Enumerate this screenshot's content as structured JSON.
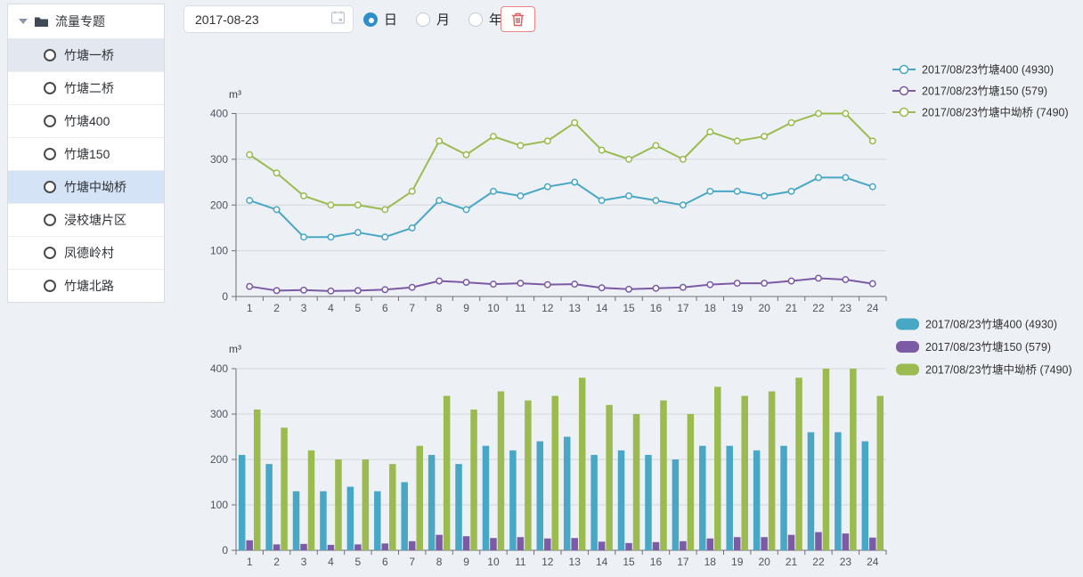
{
  "colors": {
    "page_background": "#EDF0F4",
    "sidebar_hover_bg": "#E3E7EF",
    "sidebar_selected_bg": "#D5E3F7",
    "radio_selected_blue": "#2D8EC9",
    "delete_red": "#E25A5A",
    "series_teal": "#49A7C6",
    "series_purple": "#7C5AA5",
    "series_green": "#9BBB50"
  },
  "sidebar": {
    "header": {
      "label": "流量专题"
    },
    "items": [
      {
        "label": "竹塘一桥",
        "state": "hover"
      },
      {
        "label": "竹塘二桥",
        "state": "normal"
      },
      {
        "label": "竹塘400",
        "state": "normal"
      },
      {
        "label": "竹塘150",
        "state": "normal"
      },
      {
        "label": "竹塘中坳桥",
        "state": "selected"
      },
      {
        "label": "浸校塘片区",
        "state": "normal"
      },
      {
        "label": "凤德岭村",
        "state": "normal"
      },
      {
        "label": "竹塘北路",
        "state": "normal"
      }
    ]
  },
  "toolbar": {
    "date_value": "2017-08-23",
    "period_options": [
      {
        "label": "日",
        "selected": true
      },
      {
        "label": "月",
        "selected": false
      },
      {
        "label": "年",
        "selected": false
      }
    ]
  },
  "chart_data": [
    {
      "type": "line",
      "title": "",
      "ylabel": "m³",
      "xlabel": "",
      "ylim": [
        0,
        400
      ],
      "y_ticks": [
        0,
        100,
        200,
        300,
        400
      ],
      "grid": true,
      "legend_position": "top-right",
      "x": [
        1,
        2,
        3,
        4,
        5,
        6,
        7,
        8,
        9,
        10,
        11,
        12,
        13,
        14,
        15,
        16,
        17,
        18,
        19,
        20,
        21,
        22,
        23,
        24
      ],
      "series": [
        {
          "name": "2017/08/23竹塘400 (4930)",
          "total": 4930,
          "color": "#49A7C6",
          "values": [
            210,
            190,
            130,
            130,
            140,
            130,
            150,
            210,
            190,
            230,
            220,
            240,
            250,
            210,
            220,
            210,
            200,
            230,
            230,
            220,
            230,
            260,
            260,
            240
          ]
        },
        {
          "name": "2017/08/23竹塘150 (579)",
          "total": 579,
          "color": "#7C5AA5",
          "values": [
            22,
            13,
            14,
            12,
            13,
            15,
            20,
            34,
            31,
            27,
            29,
            26,
            27,
            19,
            16,
            18,
            20,
            26,
            29,
            29,
            34,
            40,
            37,
            28
          ]
        },
        {
          "name": "2017/08/23竹塘中坳桥 (7490)",
          "total": 7490,
          "color": "#9BBB50",
          "values": [
            310,
            270,
            220,
            200,
            200,
            190,
            230,
            340,
            310,
            350,
            330,
            340,
            380,
            320,
            300,
            330,
            300,
            360,
            340,
            350,
            380,
            400,
            400,
            340
          ]
        }
      ]
    },
    {
      "type": "bar",
      "title": "",
      "ylabel": "m³",
      "xlabel": "",
      "ylim": [
        0,
        400
      ],
      "y_ticks": [
        0,
        100,
        200,
        300,
        400
      ],
      "grid": true,
      "legend_position": "top-right",
      "x": [
        1,
        2,
        3,
        4,
        5,
        6,
        7,
        8,
        9,
        10,
        11,
        12,
        13,
        14,
        15,
        16,
        17,
        18,
        19,
        20,
        21,
        22,
        23,
        24
      ],
      "series": [
        {
          "name": "2017/08/23竹塘400 (4930)",
          "total": 4930,
          "color": "#49A7C6",
          "values": [
            210,
            190,
            130,
            130,
            140,
            130,
            150,
            210,
            190,
            230,
            220,
            240,
            250,
            210,
            220,
            210,
            200,
            230,
            230,
            220,
            230,
            260,
            260,
            240
          ]
        },
        {
          "name": "2017/08/23竹塘150 (579)",
          "total": 579,
          "color": "#7C5AA5",
          "values": [
            22,
            13,
            14,
            12,
            13,
            15,
            20,
            34,
            31,
            27,
            29,
            26,
            27,
            19,
            16,
            18,
            20,
            26,
            29,
            29,
            34,
            40,
            37,
            28
          ]
        },
        {
          "name": "2017/08/23竹塘中坳桥 (7490)",
          "total": 7490,
          "color": "#9BBB50",
          "values": [
            310,
            270,
            220,
            200,
            200,
            190,
            230,
            340,
            310,
            350,
            330,
            340,
            380,
            320,
            300,
            330,
            300,
            360,
            340,
            350,
            380,
            400,
            400,
            340
          ]
        }
      ]
    }
  ]
}
